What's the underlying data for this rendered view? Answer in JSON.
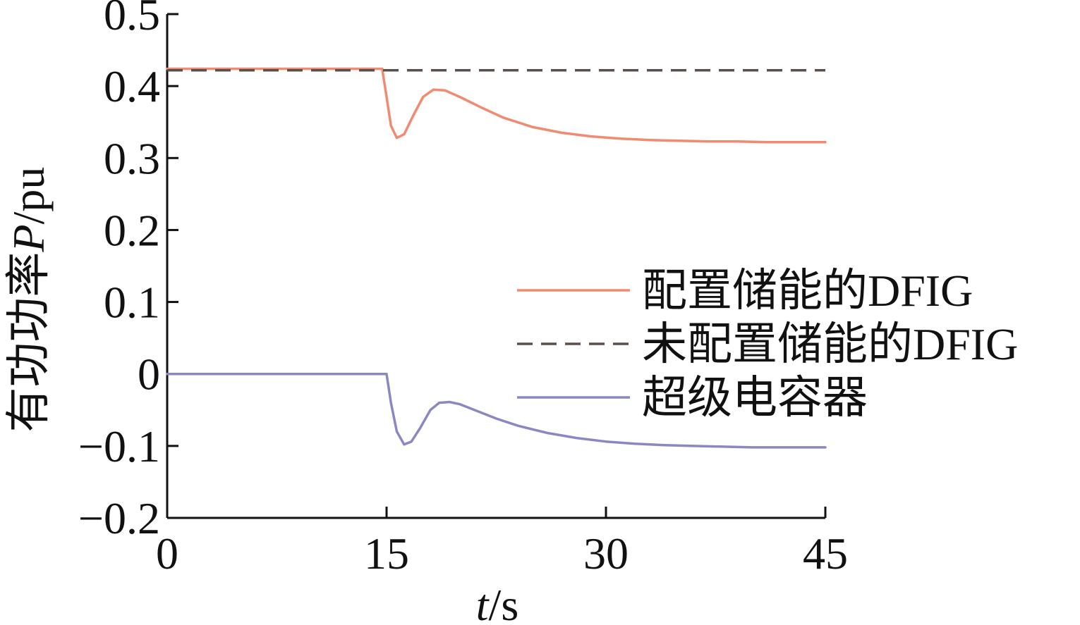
{
  "chart_data": {
    "type": "line",
    "xlabel": {
      "var": "t",
      "unit": "/s"
    },
    "ylabel": {
      "text": "有功功率",
      "var": "P",
      "unit": "/pu"
    },
    "xlim": [
      0,
      45
    ],
    "ylim": [
      -0.2,
      0.5
    ],
    "x_ticks": [
      0,
      15,
      30,
      45
    ],
    "x_tick_labels": [
      "0",
      "15",
      "30",
      "45"
    ],
    "y_ticks": [
      -0.2,
      -0.1,
      0,
      0.1,
      0.2,
      0.3,
      0.4,
      0.5
    ],
    "y_tick_labels": [
      "−0.2",
      "−0.1",
      "0",
      "0.1",
      "0.2",
      "0.3",
      "0.4",
      "0.5"
    ],
    "grid": false,
    "legend_position": "right",
    "series": [
      {
        "name": "配置储能的DFIG",
        "color": "#f08a70",
        "dash": "solid",
        "x": [
          0,
          14.7,
          15.0,
          15.3,
          15.7,
          16.2,
          16.8,
          17.5,
          18.2,
          19.0,
          20.0,
          21.5,
          23.0,
          25.0,
          27.0,
          29.0,
          31.0,
          33.0,
          35.0,
          37.0,
          39.0,
          41.0,
          43.0,
          45.0
        ],
        "y": [
          0.424,
          0.424,
          0.385,
          0.345,
          0.328,
          0.333,
          0.358,
          0.385,
          0.395,
          0.394,
          0.385,
          0.37,
          0.356,
          0.343,
          0.335,
          0.33,
          0.327,
          0.325,
          0.324,
          0.323,
          0.323,
          0.322,
          0.322,
          0.322
        ]
      },
      {
        "name": "未配置储能的DFIG",
        "color": "#5a4f4c",
        "dash": "dashed",
        "x": [
          0,
          45
        ],
        "y": [
          0.422,
          0.422
        ]
      },
      {
        "name": "超级电容器",
        "color": "#8b87c2",
        "dash": "solid",
        "x": [
          0,
          15.0,
          15.3,
          15.7,
          16.2,
          16.7,
          17.3,
          18.0,
          18.6,
          19.3,
          20.0,
          21.0,
          22.5,
          24.0,
          26.0,
          28.0,
          30.0,
          32.0,
          34.0,
          36.0,
          38.0,
          40.0,
          42.0,
          45.0
        ],
        "y": [
          0.0,
          0.0,
          -0.04,
          -0.08,
          -0.098,
          -0.094,
          -0.075,
          -0.05,
          -0.04,
          -0.039,
          -0.042,
          -0.05,
          -0.062,
          -0.072,
          -0.082,
          -0.089,
          -0.094,
          -0.097,
          -0.099,
          -0.1,
          -0.101,
          -0.102,
          -0.102,
          -0.102
        ]
      }
    ]
  }
}
